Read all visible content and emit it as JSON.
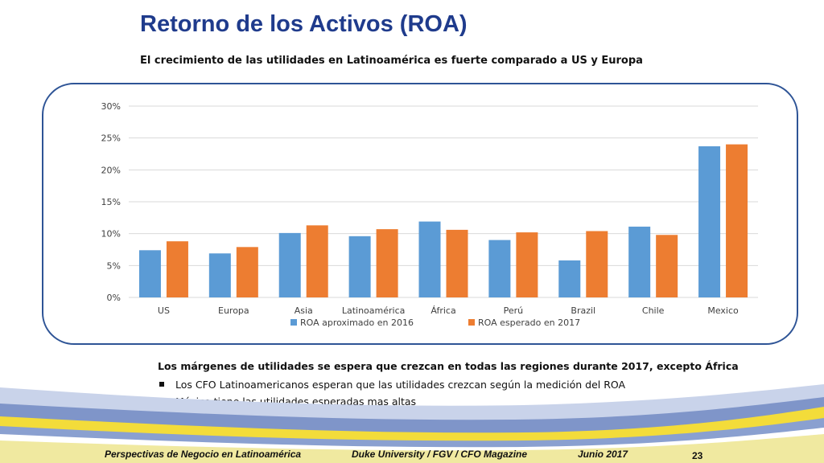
{
  "slide": {
    "title": "Retorno de los Activos (ROA)",
    "subtitle": "El crecimiento de las utilidades en Latinoamérica es fuerte comparado a US y Europa"
  },
  "colors": {
    "title": "#1f3b8c",
    "frame": "#2e5496",
    "series_2016": "#5b9bd5",
    "series_2017": "#ed7d31"
  },
  "chart_data": {
    "type": "bar",
    "categories": [
      "US",
      "Europa",
      "Asia",
      "Latinoamérica",
      "África",
      "Perú",
      "Brazil",
      "Chile",
      "Mexico"
    ],
    "series": [
      {
        "name": "ROA aproximado en 2016",
        "values": [
          7.4,
          6.9,
          10.1,
          9.6,
          11.9,
          9.0,
          5.8,
          11.1,
          23.7
        ]
      },
      {
        "name": "ROA esperado en 2017",
        "values": [
          8.8,
          7.9,
          11.3,
          10.7,
          10.6,
          10.2,
          10.4,
          9.8,
          24.0
        ]
      }
    ],
    "yticks": [
      "0%",
      "5%",
      "10%",
      "15%",
      "20%",
      "25%",
      "30%"
    ],
    "ylim": [
      0,
      30
    ],
    "grid": true,
    "legend": "bottom"
  },
  "notes": {
    "lead": "Los márgenes de utilidades se espera que crezcan en todas las regiones durante 2017, excepto África",
    "bullets": [
      "Los CFO Latinoamericanos esperan que las utilidades crezcan según la medición del ROA",
      "México tiene las utilidades esperadas mas altas"
    ]
  },
  "footer": {
    "left": "Perspectivas de Negocio en Latinoamérica",
    "center": "Duke University / FGV / CFO Magazine",
    "date": "Junio 2017",
    "page": "23"
  }
}
